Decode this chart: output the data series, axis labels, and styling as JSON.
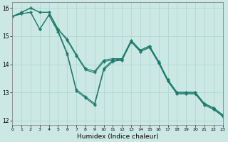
{
  "xlabel": "Humidex (Indice chaleur)",
  "ylabel": "",
  "background_color": "#cce8e4",
  "grid_color": "#b0d8d0",
  "line_color": "#1a7a6a",
  "xlim": [
    0,
    23
  ],
  "ylim": [
    11.85,
    16.2
  ],
  "yticks": [
    12,
    13,
    14,
    15,
    16
  ],
  "xtick_labels": [
    "0",
    "1",
    "2",
    "3",
    "4",
    "5",
    "6",
    "7",
    "8",
    "9",
    "10",
    "11",
    "12",
    "13",
    "14",
    "15",
    "16",
    "17",
    "18",
    "19",
    "20",
    "21",
    "22",
    "23"
  ],
  "series": [
    {
      "x": [
        0,
        1,
        2,
        3,
        4,
        5,
        6,
        7,
        8,
        9,
        10,
        11,
        12,
        13,
        14,
        15,
        16,
        17,
        18,
        19,
        20,
        21,
        22,
        23
      ],
      "y": [
        15.7,
        15.8,
        15.85,
        15.25,
        15.75,
        15.2,
        14.4,
        13.1,
        12.85,
        12.6,
        13.85,
        14.15,
        14.2,
        14.85,
        14.5,
        14.65,
        14.1,
        13.45,
        13.0,
        13.0,
        13.0,
        12.6,
        12.45,
        12.2
      ]
    },
    {
      "x": [
        0,
        1,
        2,
        3,
        4,
        5,
        6,
        7,
        8,
        9,
        10,
        11,
        12,
        13,
        14,
        15,
        16,
        17,
        18,
        19,
        20,
        21,
        22,
        23
      ],
      "y": [
        15.7,
        15.85,
        16.0,
        15.85,
        15.85,
        15.25,
        14.9,
        14.35,
        13.85,
        13.75,
        14.15,
        14.2,
        14.2,
        14.85,
        14.5,
        14.65,
        14.1,
        13.45,
        13.0,
        13.0,
        13.0,
        12.6,
        12.45,
        12.2
      ]
    },
    {
      "x": [
        0,
        1,
        2,
        3,
        4,
        5,
        6,
        7,
        8,
        9,
        10,
        11,
        12,
        13,
        14,
        15,
        16,
        17,
        18,
        19,
        20,
        21,
        22,
        23
      ],
      "y": [
        15.7,
        15.85,
        16.0,
        15.85,
        15.85,
        15.25,
        14.85,
        14.3,
        13.8,
        13.7,
        14.1,
        14.15,
        14.15,
        14.8,
        14.45,
        14.6,
        14.05,
        13.4,
        12.95,
        12.95,
        12.95,
        12.55,
        12.4,
        12.15
      ]
    },
    {
      "x": [
        0,
        1,
        2,
        3,
        4,
        5,
        6,
        7,
        8,
        9,
        10,
        11,
        12,
        13,
        14,
        15,
        16,
        17,
        18,
        19,
        20,
        21,
        22,
        23
      ],
      "y": [
        15.7,
        15.8,
        15.85,
        15.25,
        15.75,
        15.15,
        14.35,
        13.05,
        12.8,
        12.55,
        13.8,
        14.1,
        14.15,
        14.8,
        14.45,
        14.6,
        14.05,
        13.4,
        12.95,
        12.95,
        12.95,
        12.55,
        12.4,
        12.15
      ]
    }
  ]
}
